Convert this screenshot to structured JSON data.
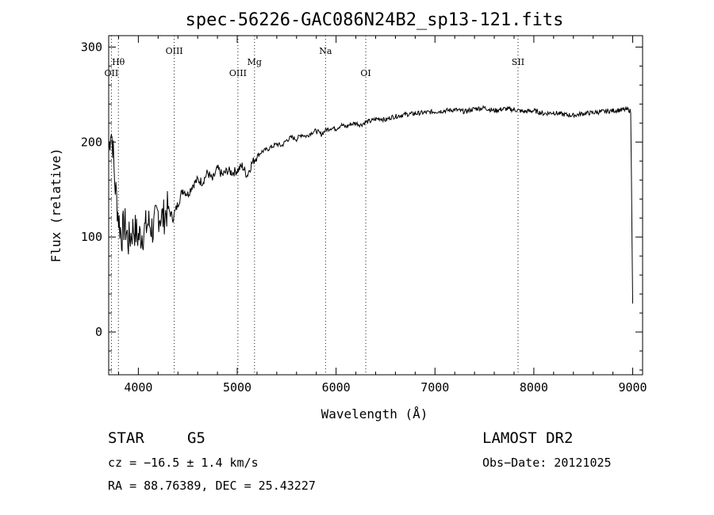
{
  "chart_data": {
    "type": "line",
    "title": "spec-56226-GAC086N24B2_sp13-121.fits",
    "xlabel": "Wavelength (Å)",
    "ylabel": "Flux (relative)",
    "xlim": [
      3700,
      9100
    ],
    "ylim": [
      -45,
      312
    ],
    "xticks": [
      "4000",
      "5000",
      "6000",
      "7000",
      "8000",
      "9000"
    ],
    "yticks": [
      "0",
      "100",
      "200",
      "300"
    ],
    "grid": false,
    "spectral_lines": [
      {
        "label": "OII",
        "wavelength": 3727
      },
      {
        "label": "Hθ",
        "wavelength": 3798
      },
      {
        "label": "OIII",
        "wavelength": 4363
      },
      {
        "label": "OIII",
        "wavelength": 5007
      },
      {
        "label": "Mg",
        "wavelength": 5175
      },
      {
        "label": "Na",
        "wavelength": 5893
      },
      {
        "label": "OI",
        "wavelength": 6300
      },
      {
        "label": "SII",
        "wavelength": 7840
      }
    ],
    "series": [
      {
        "x": [
          3700,
          3720,
          3740,
          3760,
          3780,
          3800,
          3830,
          3860,
          3900,
          3950,
          4000,
          4050,
          4100,
          4150,
          4200,
          4250,
          4300,
          4350,
          4400,
          4450,
          4500,
          4550,
          4600,
          4650,
          4700,
          4750,
          4800,
          4850,
          4900,
          4950,
          5000,
          5050,
          5100,
          5150,
          5200,
          5250,
          5300,
          5350,
          5400,
          5450,
          5500,
          5550,
          5600,
          5650,
          5700,
          5750,
          5800,
          5850,
          5900,
          5950,
          6000,
          6050,
          6100,
          6150,
          6200,
          6250,
          6300,
          6350,
          6400,
          6450,
          6500,
          6550,
          6600,
          6700,
          6800,
          6900,
          7000,
          7100,
          7200,
          7300,
          7400,
          7500,
          7600,
          7700,
          7800,
          7900,
          8000,
          8100,
          8200,
          8300,
          8400,
          8500,
          8600,
          8700,
          8800,
          8900,
          8960,
          8980,
          9000
        ],
        "y": [
          190,
          215,
          200,
          160,
          140,
          120,
          100,
          115,
          95,
          110,
          100,
          105,
          115,
          108,
          125,
          120,
          130,
          120,
          135,
          150,
          145,
          155,
          160,
          158,
          168,
          160,
          172,
          165,
          170,
          168,
          170,
          175,
          165,
          178,
          185,
          190,
          192,
          195,
          198,
          196,
          202,
          205,
          203,
          208,
          206,
          210,
          212,
          208,
          213,
          215,
          214,
          218,
          216,
          219,
          220,
          218,
          221,
          222,
          224,
          225,
          223,
          226,
          227,
          229,
          230,
          231,
          232,
          233,
          234,
          232,
          235,
          236,
          233,
          235,
          234,
          232,
          233,
          230,
          231,
          229,
          228,
          230,
          231,
          232,
          233,
          234,
          234,
          232,
          30
        ]
      }
    ]
  },
  "info": {
    "object_type": "STAR",
    "subclass": "G5",
    "survey": "LAMOST DR2",
    "cz": "cz = −16.5 ± 1.4 km/s",
    "obs_date": "Obs−Date: 20121025",
    "coords": "RA =  88.76389, DEC =  25.43227"
  }
}
